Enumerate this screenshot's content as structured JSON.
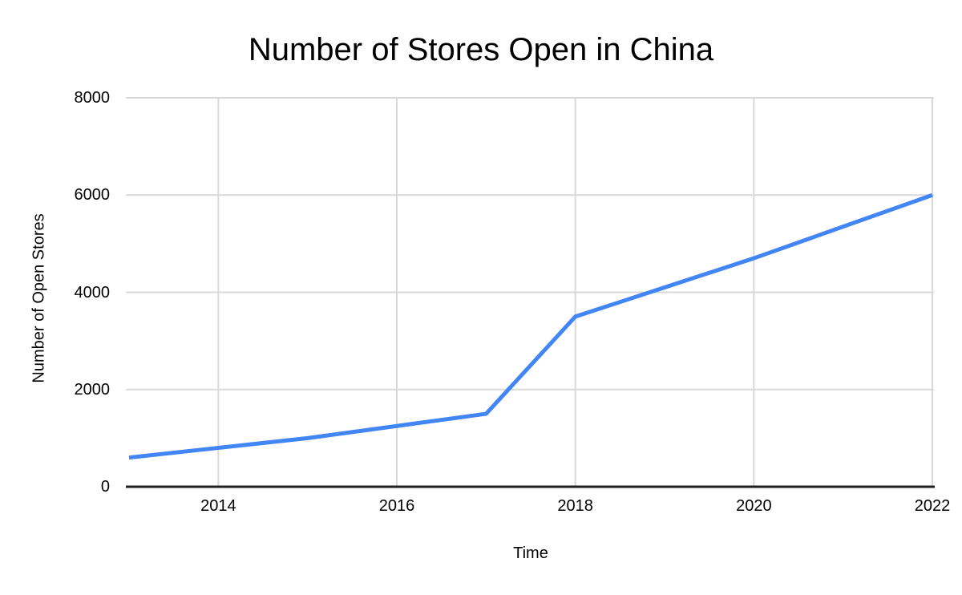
{
  "chart_data": {
    "type": "line",
    "title": "Number of Stores Open in China",
    "xlabel": "Time",
    "ylabel": "Number of Open Stores",
    "x": [
      2013,
      2014,
      2015,
      2016,
      2017,
      2018,
      2019,
      2020,
      2021,
      2022
    ],
    "series": [
      {
        "name": "Number of Open Stores",
        "values": [
          600,
          800,
          1000,
          1250,
          1500,
          3500,
          4100,
          4700,
          5350,
          6000
        ]
      }
    ],
    "xlim": [
      2013,
      2022
    ],
    "ylim": [
      0,
      8000
    ],
    "x_ticks": [
      2014,
      2016,
      2018,
      2020,
      2022
    ],
    "x_tick_labels": [
      "2014",
      "2016",
      "2018",
      "2020",
      "2022"
    ],
    "y_ticks": [
      0,
      2000,
      4000,
      6000,
      8000
    ],
    "y_tick_labels": [
      "0",
      "2000",
      "4000",
      "6000",
      "8000"
    ],
    "grid": true,
    "legend_position": "none",
    "colors": {
      "line": "#4285f4",
      "grid": "#d9d9d9",
      "axis": "#212121",
      "text": "#000000",
      "background": "#ffffff"
    }
  }
}
